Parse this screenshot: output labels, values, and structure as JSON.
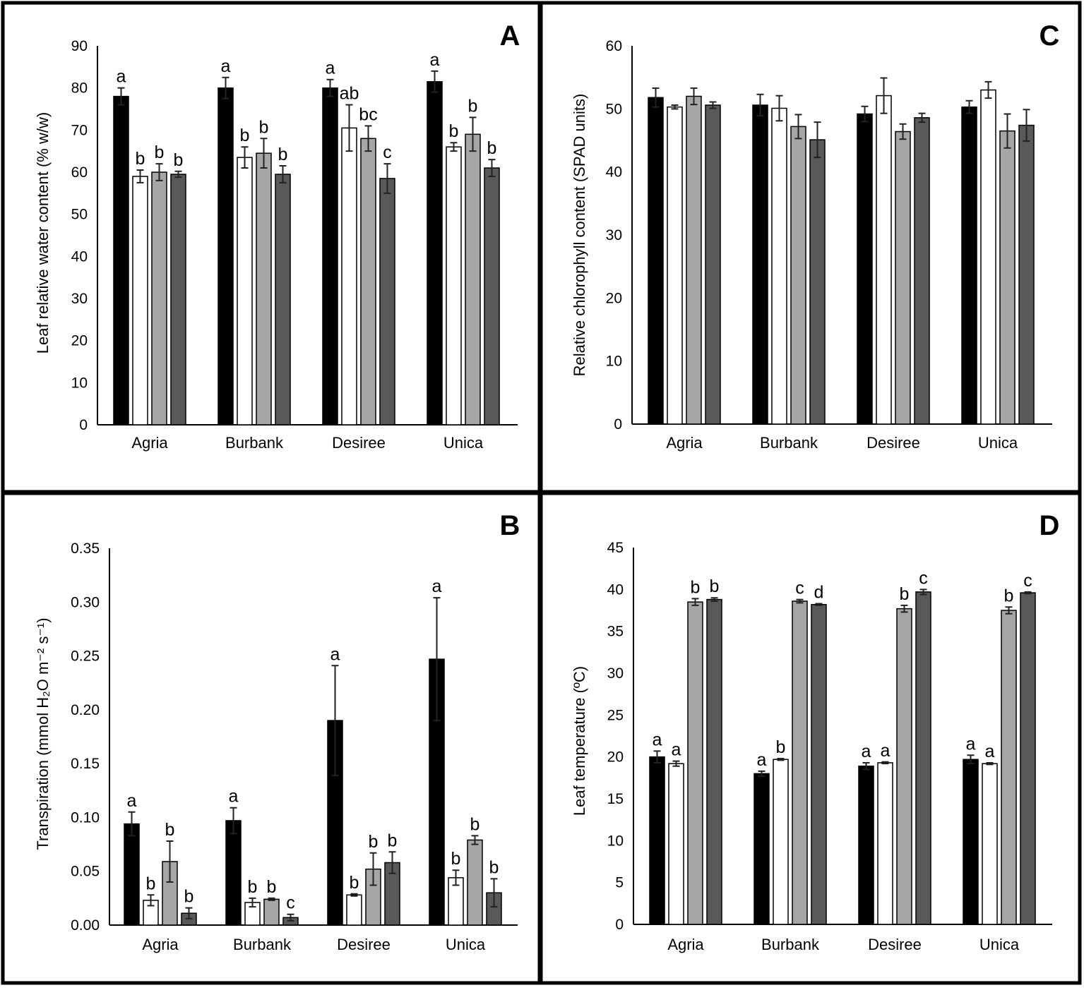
{
  "series_colors": [
    "#000000",
    "#ffffff",
    "#a6a6a6",
    "#595959"
  ],
  "chart_data": [
    {
      "id": "A",
      "type": "bar",
      "panel_label": "A",
      "ylabel": "Leaf relative water content (% w/w)",
      "ylim": [
        0,
        90
      ],
      "yticks": [
        "0",
        "10",
        "20",
        "30",
        "40",
        "50",
        "60",
        "70",
        "80",
        "90"
      ],
      "ytick_values": [
        0,
        10,
        20,
        30,
        40,
        50,
        60,
        70,
        80,
        90
      ],
      "categories": [
        "Agria",
        "Burbank",
        "Desiree",
        "Unica"
      ],
      "series": [
        {
          "name": "series-1",
          "values": [
            78,
            80,
            80,
            81.5
          ],
          "errors": [
            2,
            2.5,
            2,
            2.5
          ],
          "labels": [
            "a",
            "a",
            "a",
            "a"
          ]
        },
        {
          "name": "series-2",
          "values": [
            59,
            63.5,
            70.5,
            66
          ],
          "errors": [
            1.5,
            2.5,
            5.5,
            1
          ],
          "labels": [
            "b",
            "b",
            "ab",
            "b"
          ]
        },
        {
          "name": "series-3",
          "values": [
            60,
            64.5,
            68,
            69
          ],
          "errors": [
            2,
            3.5,
            3,
            4
          ],
          "labels": [
            "b",
            "b",
            "bc",
            "b"
          ]
        },
        {
          "name": "series-4",
          "values": [
            59.5,
            59.5,
            58.5,
            61
          ],
          "errors": [
            0.7,
            2,
            3.5,
            2
          ],
          "labels": [
            "b",
            "b",
            "c",
            "b"
          ]
        }
      ]
    },
    {
      "id": "B",
      "type": "bar",
      "panel_label": "B",
      "ylabel": "Transpiration (mmol H₂O m⁻² s⁻¹)",
      "ylim": [
        0,
        0.35
      ],
      "yticks": [
        "0.00",
        "0.05",
        "0.10",
        "0.15",
        "0.20",
        "0.25",
        "0.30",
        "0.35"
      ],
      "ytick_values": [
        0,
        0.05,
        0.1,
        0.15,
        0.2,
        0.25,
        0.3,
        0.35
      ],
      "categories": [
        "Agria",
        "Burbank",
        "Desiree",
        "Unica"
      ],
      "series": [
        {
          "name": "series-1",
          "values": [
            0.094,
            0.097,
            0.19,
            0.247
          ],
          "errors": [
            0.011,
            0.012,
            0.051,
            0.057
          ],
          "labels": [
            "a",
            "a",
            "a",
            "a"
          ]
        },
        {
          "name": "series-2",
          "values": [
            0.023,
            0.021,
            0.028,
            0.044
          ],
          "errors": [
            0.005,
            0.004,
            0.001,
            0.007
          ],
          "labels": [
            "b",
            "b",
            "b",
            "b"
          ]
        },
        {
          "name": "series-3",
          "values": [
            0.059,
            0.024,
            0.052,
            0.079
          ],
          "errors": [
            0.019,
            0.001,
            0.015,
            0.004
          ],
          "labels": [
            "b",
            "b",
            "b",
            "b"
          ]
        },
        {
          "name": "series-4",
          "values": [
            0.011,
            0.007,
            0.058,
            0.03
          ],
          "errors": [
            0.005,
            0.003,
            0.01,
            0.013
          ],
          "labels": [
            "b",
            "c",
            "b",
            "b"
          ]
        }
      ]
    },
    {
      "id": "C",
      "type": "bar",
      "panel_label": "C",
      "ylabel": "Relative chlorophyll content (SPAD units)",
      "ylim": [
        0,
        60
      ],
      "yticks": [
        "0",
        "10",
        "20",
        "30",
        "40",
        "50",
        "60"
      ],
      "ytick_values": [
        0,
        10,
        20,
        30,
        40,
        50,
        60
      ],
      "categories": [
        "Agria",
        "Burbank",
        "Desiree",
        "Unica"
      ],
      "series": [
        {
          "name": "series-1",
          "values": [
            51.8,
            50.6,
            49.2,
            50.3
          ],
          "errors": [
            1.5,
            1.7,
            1.2,
            1.0
          ],
          "labels": [
            "",
            "",
            "",
            ""
          ]
        },
        {
          "name": "series-2",
          "values": [
            50.3,
            50.1,
            52.1,
            53
          ],
          "errors": [
            0.3,
            2,
            2.8,
            1.3
          ],
          "labels": [
            "",
            "",
            "",
            ""
          ]
        },
        {
          "name": "series-3",
          "values": [
            52,
            47.2,
            46.4,
            46.5
          ],
          "errors": [
            1.3,
            1.9,
            1.2,
            2.7
          ],
          "labels": [
            "",
            "",
            "",
            ""
          ]
        },
        {
          "name": "series-4",
          "values": [
            50.6,
            45.1,
            48.6,
            47.4
          ],
          "errors": [
            0.5,
            2.8,
            0.7,
            2.5
          ],
          "labels": [
            "",
            "",
            "",
            ""
          ]
        }
      ]
    },
    {
      "id": "D",
      "type": "bar",
      "panel_label": "D",
      "ylabel": "Leaf temperature (ºC)",
      "ylim": [
        0,
        45
      ],
      "yticks": [
        "0",
        "5",
        "10",
        "15",
        "20",
        "25",
        "30",
        "35",
        "40",
        "45"
      ],
      "ytick_values": [
        0,
        5,
        10,
        15,
        20,
        25,
        30,
        35,
        40,
        45
      ],
      "categories": [
        "Agria",
        "Burbank",
        "Desiree",
        "Unica"
      ],
      "series": [
        {
          "name": "series-1",
          "values": [
            20,
            18,
            18.9,
            19.7
          ],
          "errors": [
            0.7,
            0.3,
            0.4,
            0.5
          ],
          "labels": [
            "a",
            "a",
            "a",
            "a"
          ]
        },
        {
          "name": "series-2",
          "values": [
            19.2,
            19.7,
            19.3,
            19.2
          ],
          "errors": [
            0.3,
            0.1,
            0.1,
            0.1
          ],
          "labels": [
            "a",
            "b",
            "a",
            "a"
          ]
        },
        {
          "name": "series-3",
          "values": [
            38.5,
            38.6,
            37.7,
            37.5
          ],
          "errors": [
            0.4,
            0.2,
            0.4,
            0.4
          ],
          "labels": [
            "b",
            "c",
            "b",
            "b"
          ]
        },
        {
          "name": "series-4",
          "values": [
            38.8,
            38.2,
            39.7,
            39.6
          ],
          "errors": [
            0.2,
            0.1,
            0.3,
            0.1
          ],
          "labels": [
            "b",
            "d",
            "c",
            "c"
          ]
        }
      ]
    }
  ]
}
